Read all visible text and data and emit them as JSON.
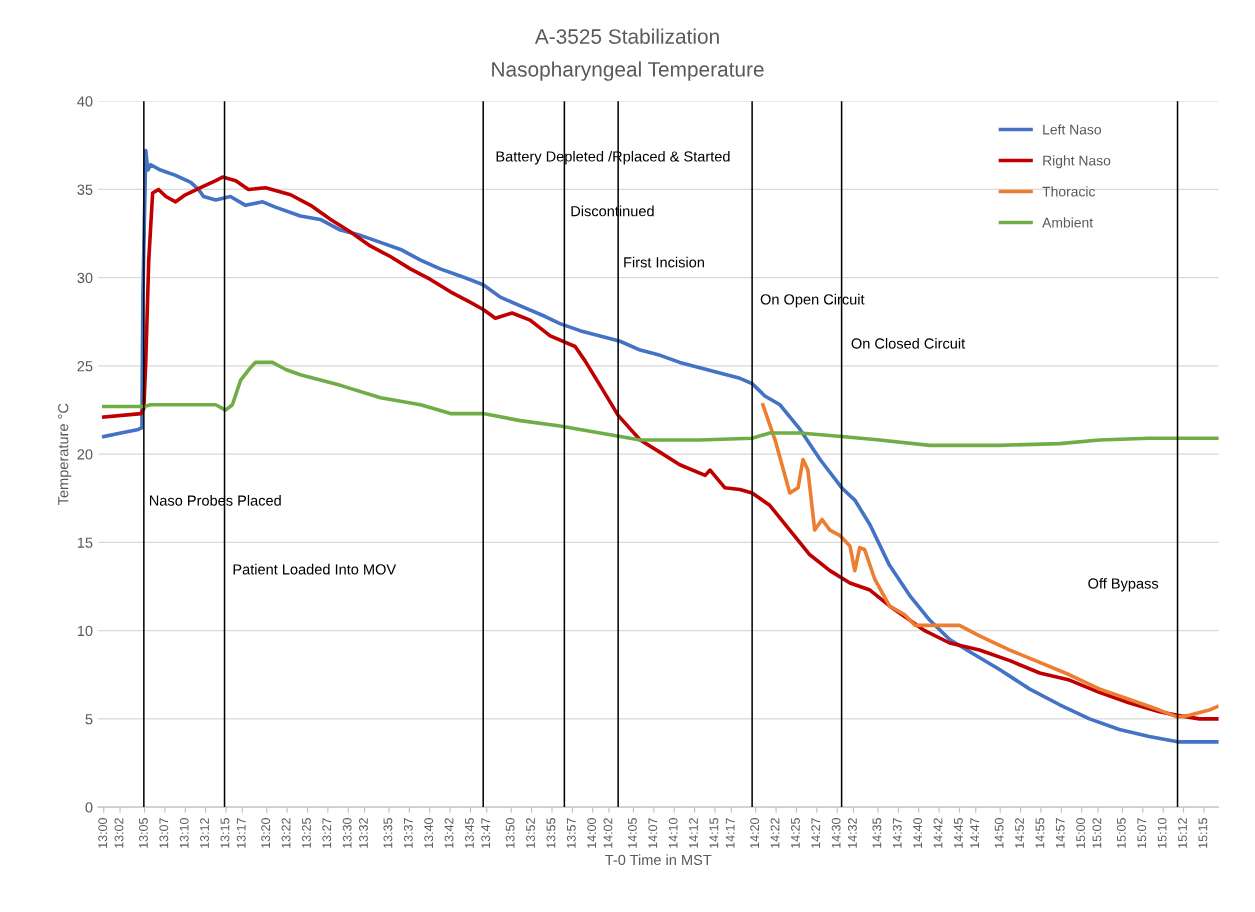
{
  "chart_data": {
    "type": "line",
    "title": "A-3525 Stabilization",
    "subtitle": "Nasopharyngeal Temperature",
    "xlabel": "T-0 Time in MST",
    "ylabel": "Temperature °C",
    "xlim": [
      12.988,
      15.28
    ],
    "ylim": [
      0,
      40
    ],
    "yticks": [
      0,
      5,
      10,
      15,
      20,
      25,
      30,
      35,
      40
    ],
    "xticks": [
      {
        "value": 13.0,
        "label": "13:00"
      },
      {
        "value": 13.0333,
        "label": "13:02"
      },
      {
        "value": 13.0833,
        "label": "13:05"
      },
      {
        "value": 13.125,
        "label": "13:07"
      },
      {
        "value": 13.1667,
        "label": "13:10"
      },
      {
        "value": 13.2083,
        "label": "13:12"
      },
      {
        "value": 13.25,
        "label": "13:15"
      },
      {
        "value": 13.2833,
        "label": "13:17"
      },
      {
        "value": 13.3333,
        "label": "13:20"
      },
      {
        "value": 13.375,
        "label": "13:22"
      },
      {
        "value": 13.4167,
        "label": "13:25"
      },
      {
        "value": 13.4583,
        "label": "13:27"
      },
      {
        "value": 13.5,
        "label": "13:30"
      },
      {
        "value": 13.5333,
        "label": "13:32"
      },
      {
        "value": 13.5833,
        "label": "13:35"
      },
      {
        "value": 13.625,
        "label": "13:37"
      },
      {
        "value": 13.6667,
        "label": "13:40"
      },
      {
        "value": 13.7083,
        "label": "13:42"
      },
      {
        "value": 13.75,
        "label": "13:45"
      },
      {
        "value": 13.7833,
        "label": "13:47"
      },
      {
        "value": 13.8333,
        "label": "13:50"
      },
      {
        "value": 13.875,
        "label": "13:52"
      },
      {
        "value": 13.9167,
        "label": "13:55"
      },
      {
        "value": 13.9583,
        "label": "13:57"
      },
      {
        "value": 14.0,
        "label": "14:00"
      },
      {
        "value": 14.0333,
        "label": "14:02"
      },
      {
        "value": 14.0833,
        "label": "14:05"
      },
      {
        "value": 14.125,
        "label": "14:07"
      },
      {
        "value": 14.1667,
        "label": "14:10"
      },
      {
        "value": 14.2083,
        "label": "14:12"
      },
      {
        "value": 14.25,
        "label": "14:15"
      },
      {
        "value": 14.2833,
        "label": "14:17"
      },
      {
        "value": 14.3333,
        "label": "14:20"
      },
      {
        "value": 14.375,
        "label": "14:22"
      },
      {
        "value": 14.4167,
        "label": "14:25"
      },
      {
        "value": 14.4583,
        "label": "14:27"
      },
      {
        "value": 14.5,
        "label": "14:30"
      },
      {
        "value": 14.5333,
        "label": "14:32"
      },
      {
        "value": 14.5833,
        "label": "14:35"
      },
      {
        "value": 14.625,
        "label": "14:37"
      },
      {
        "value": 14.6667,
        "label": "14:40"
      },
      {
        "value": 14.7083,
        "label": "14:42"
      },
      {
        "value": 14.75,
        "label": "14:45"
      },
      {
        "value": 14.7833,
        "label": "14:47"
      },
      {
        "value": 14.8333,
        "label": "14:50"
      },
      {
        "value": 14.875,
        "label": "14:52"
      },
      {
        "value": 14.9167,
        "label": "14:55"
      },
      {
        "value": 14.9583,
        "label": "14:57"
      },
      {
        "value": 15.0,
        "label": "15:00"
      },
      {
        "value": 15.0333,
        "label": "15:02"
      },
      {
        "value": 15.0833,
        "label": "15:05"
      },
      {
        "value": 15.125,
        "label": "15:07"
      },
      {
        "value": 15.1667,
        "label": "15:10"
      },
      {
        "value": 15.2083,
        "label": "15:12"
      },
      {
        "value": 15.25,
        "label": "15:15"
      }
    ],
    "grid": "y",
    "legend": "top right",
    "marker": "none",
    "line_style": "solid",
    "series": [
      {
        "name": "Left Naso",
        "color": "#4472c4",
        "x": [
          13.0,
          13.035,
          13.071,
          13.078,
          13.08,
          13.086,
          13.09,
          13.096,
          13.116,
          13.147,
          13.178,
          13.194,
          13.204,
          13.229,
          13.259,
          13.29,
          13.325,
          13.351,
          13.402,
          13.443,
          13.484,
          13.525,
          13.566,
          13.607,
          13.648,
          13.688,
          13.729,
          13.776,
          13.811,
          13.852,
          13.903,
          13.933,
          13.974,
          14.015,
          14.056,
          14.097,
          14.138,
          14.178,
          14.219,
          14.26,
          14.301,
          14.326,
          14.352,
          14.383,
          14.424,
          14.465,
          14.509,
          14.536,
          14.567,
          14.607,
          14.648,
          14.689,
          14.73,
          14.771,
          14.832,
          14.893,
          14.955,
          15.016,
          15.077,
          15.138,
          15.196,
          15.241,
          15.277
        ],
        "values": [
          21.0,
          21.2,
          21.4,
          21.5,
          29.0,
          37.2,
          36.1,
          36.4,
          36.1,
          35.8,
          35.4,
          35.0,
          34.6,
          34.4,
          34.6,
          34.1,
          34.3,
          34.0,
          33.5,
          33.3,
          32.7,
          32.4,
          32.0,
          31.6,
          31.0,
          30.5,
          30.1,
          29.6,
          28.9,
          28.4,
          27.8,
          27.4,
          27.0,
          26.7,
          26.4,
          25.9,
          25.6,
          25.2,
          24.9,
          24.6,
          24.3,
          24.0,
          23.3,
          22.8,
          21.4,
          19.7,
          18.1,
          17.4,
          16.0,
          13.7,
          12.0,
          10.6,
          9.5,
          8.8,
          7.8,
          6.7,
          5.8,
          5.0,
          4.4,
          4.0,
          3.7,
          3.7,
          3.7
        ]
      },
      {
        "name": "Right Naso",
        "color": "#c00000",
        "x": [
          13.0,
          13.076,
          13.082,
          13.086,
          13.092,
          13.1,
          13.112,
          13.127,
          13.147,
          13.167,
          13.198,
          13.229,
          13.243,
          13.27,
          13.296,
          13.331,
          13.382,
          13.423,
          13.464,
          13.504,
          13.545,
          13.586,
          13.627,
          13.668,
          13.709,
          13.75,
          13.776,
          13.801,
          13.835,
          13.872,
          13.913,
          13.964,
          13.984,
          14.015,
          14.052,
          14.097,
          14.138,
          14.178,
          14.23,
          14.24,
          14.27,
          14.301,
          14.326,
          14.362,
          14.403,
          14.444,
          14.485,
          14.526,
          14.567,
          14.607,
          14.648,
          14.679,
          14.73,
          14.791,
          14.853,
          14.914,
          14.975,
          15.036,
          15.098,
          15.159,
          15.196,
          15.241,
          15.277
        ],
        "values": [
          22.1,
          22.3,
          22.6,
          25.3,
          31.0,
          34.8,
          35.0,
          34.6,
          34.3,
          34.7,
          35.1,
          35.5,
          35.7,
          35.5,
          35.0,
          35.1,
          34.7,
          34.1,
          33.3,
          32.6,
          31.8,
          31.2,
          30.5,
          29.9,
          29.2,
          28.6,
          28.2,
          27.7,
          28.0,
          27.6,
          26.7,
          26.1,
          25.3,
          23.9,
          22.2,
          20.8,
          20.1,
          19.4,
          18.8,
          19.1,
          18.1,
          18.0,
          17.8,
          17.1,
          15.7,
          14.3,
          13.4,
          12.7,
          12.3,
          11.4,
          10.6,
          10.0,
          9.3,
          8.9,
          8.3,
          7.6,
          7.2,
          6.5,
          5.9,
          5.4,
          5.2,
          5.0,
          5.0
        ]
      },
      {
        "name": "Thoracic",
        "color": "#ed7d31",
        "x": [
          14.348,
          14.373,
          14.387,
          14.403,
          14.42,
          14.43,
          14.44,
          14.454,
          14.469,
          14.485,
          14.505,
          14.526,
          14.536,
          14.546,
          14.556,
          14.577,
          14.607,
          14.638,
          14.659,
          14.71,
          14.75,
          14.791,
          14.853,
          14.914,
          14.975,
          15.036,
          15.098,
          15.159,
          15.196,
          15.22,
          15.261,
          15.277
        ],
        "values": [
          22.8,
          20.8,
          19.4,
          17.8,
          18.1,
          19.7,
          19.1,
          15.7,
          16.3,
          15.7,
          15.4,
          14.8,
          13.4,
          14.7,
          14.6,
          12.9,
          11.4,
          10.9,
          10.3,
          10.3,
          10.3,
          9.7,
          8.9,
          8.2,
          7.5,
          6.7,
          6.1,
          5.5,
          5.1,
          5.2,
          5.5,
          5.7
        ]
      },
      {
        "name": "Ambient",
        "color": "#70ad47",
        "x": [
          13.0,
          13.082,
          13.096,
          13.229,
          13.249,
          13.263,
          13.28,
          13.3,
          13.31,
          13.345,
          13.372,
          13.402,
          13.484,
          13.566,
          13.648,
          13.709,
          13.776,
          13.852,
          13.933,
          14.015,
          14.097,
          14.219,
          14.326,
          14.362,
          14.424,
          14.509,
          14.587,
          14.689,
          14.832,
          14.955,
          15.036,
          15.138,
          15.277
        ],
        "values": [
          22.7,
          22.7,
          22.8,
          22.8,
          22.5,
          22.8,
          24.2,
          24.9,
          25.2,
          25.2,
          24.8,
          24.5,
          23.9,
          23.2,
          22.8,
          22.3,
          22.3,
          21.9,
          21.6,
          21.2,
          20.8,
          20.8,
          20.9,
          21.2,
          21.2,
          21.0,
          20.8,
          20.5,
          20.5,
          20.6,
          20.8,
          20.9,
          20.9
        ]
      }
    ],
    "ref_lines": [
      {
        "axis": "x",
        "value": 13.082,
        "color": "#000000"
      },
      {
        "axis": "x",
        "value": 13.247,
        "color": "#000000"
      },
      {
        "axis": "x",
        "value": 13.776,
        "color": "#000000"
      },
      {
        "axis": "x",
        "value": 13.942,
        "color": "#000000"
      },
      {
        "axis": "x",
        "value": 14.052,
        "color": "#000000"
      },
      {
        "axis": "x",
        "value": 14.326,
        "color": "#000000"
      },
      {
        "axis": "x",
        "value": 14.509,
        "color": "#000000"
      },
      {
        "axis": "x",
        "value": 15.196,
        "color": "#000000"
      }
    ],
    "annotations": [
      "Naso Probes Placed",
      "Patient Loaded Into MOV",
      "Battery Depleted /Rplaced & Started",
      "Discontinued",
      "First Incision",
      "On Open Circuit",
      "On Closed Circuit",
      "Off Bypass"
    ]
  }
}
